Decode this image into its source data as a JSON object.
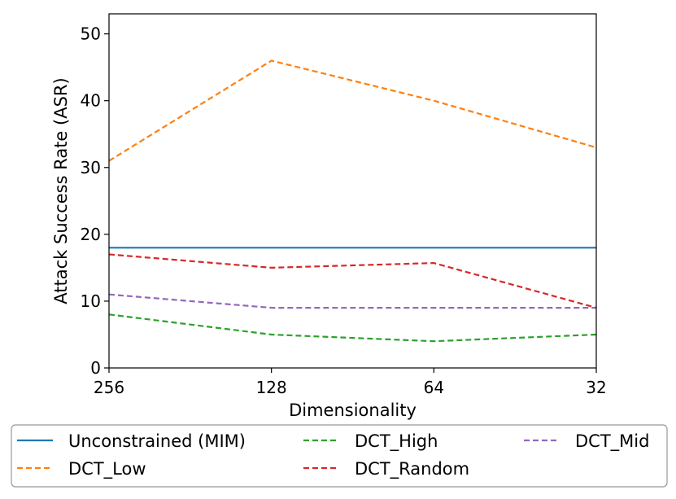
{
  "chart_data": {
    "type": "line",
    "title": "",
    "xlabel": "Dimensionality",
    "ylabel": "Attack Success Rate (ASR)",
    "categories": [
      "256",
      "128",
      "64",
      "32"
    ],
    "ylim": [
      0,
      53
    ],
    "yticks": [
      0,
      10,
      20,
      30,
      40,
      50
    ],
    "grid": false,
    "legend_position": "bottom-outside",
    "series": [
      {
        "name": "Unconstrained (MIM)",
        "values": [
          18,
          18,
          18,
          18
        ],
        "color": "#1f77b4",
        "style": "solid"
      },
      {
        "name": "DCT_Low",
        "values": [
          31,
          46,
          40,
          33
        ],
        "color": "#ff7f0e",
        "style": "dashed"
      },
      {
        "name": "DCT_High",
        "values": [
          8,
          5,
          4,
          5
        ],
        "color": "#2ca02c",
        "style": "dashed"
      },
      {
        "name": "DCT_Random",
        "values": [
          17,
          15,
          15.7,
          9
        ],
        "color": "#d62728",
        "style": "dashed"
      },
      {
        "name": "DCT_Mid",
        "values": [
          11,
          9,
          9,
          9
        ],
        "color": "#9467bd",
        "style": "dashed"
      }
    ]
  }
}
